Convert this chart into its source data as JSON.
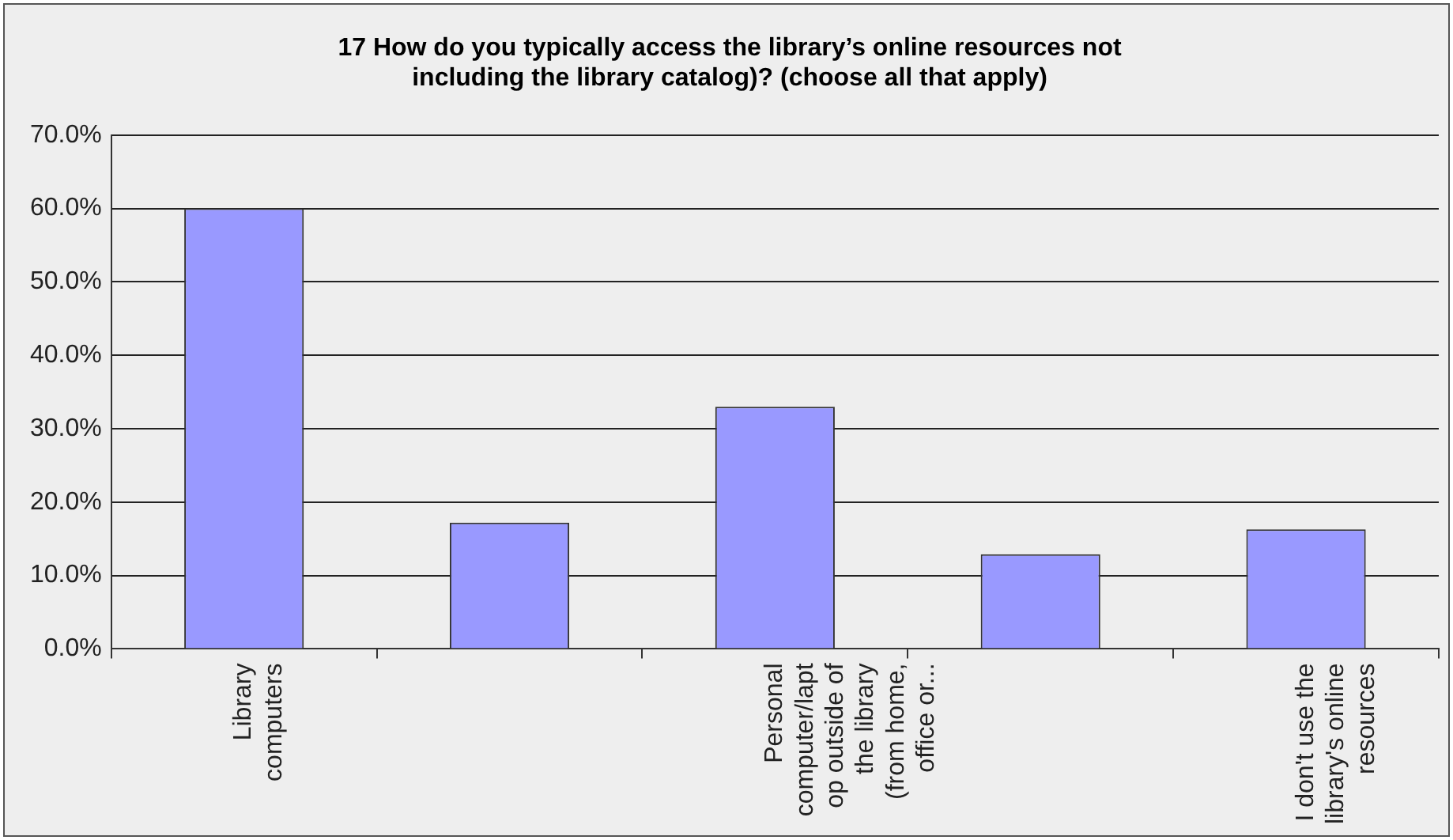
{
  "chart_data": {
    "type": "bar",
    "title": "17 How do you typically access the library’s online resources not\nincluding the library catalog)? (choose all that apply)",
    "categories": [
      "Library\ncomputers",
      null,
      "Personal\ncomputer/lapt\nop outside of\nthe library\n(from home,\noffice or...",
      null,
      "I don't use the\nlibrary's online\nresources"
    ],
    "values": [
      60.0,
      17.2,
      33.0,
      12.9,
      16.3
    ],
    "color": "#9999ff",
    "ylim": [
      0,
      70
    ],
    "yticks": [
      {
        "value": 0,
        "label": "0.0%"
      },
      {
        "value": 10,
        "label": "10.0%"
      },
      {
        "value": 20,
        "label": "20.0%"
      },
      {
        "value": 30,
        "label": "30.0%"
      },
      {
        "value": 40,
        "label": "40.0%"
      },
      {
        "value": 50,
        "label": "50.0%"
      },
      {
        "value": 60,
        "label": "60.0%"
      },
      {
        "value": 70,
        "label": "70.0%"
      }
    ],
    "grid": "y",
    "legend": false
  }
}
